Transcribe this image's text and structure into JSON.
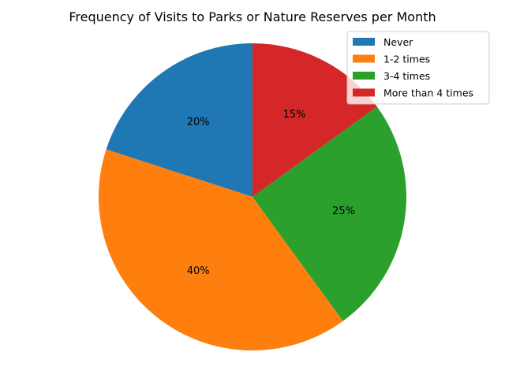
{
  "chart_data": {
    "type": "pie",
    "title": "Frequency of Visits to Parks or Nature Reserves per Month",
    "categories": [
      "Never",
      "1-2 times",
      "3-4 times",
      "More than 4 times"
    ],
    "values": [
      20,
      40,
      25,
      15
    ],
    "labels": [
      "20%",
      "40%",
      "25%",
      "15%"
    ],
    "colors": [
      "#1f77b4",
      "#ff7f0e",
      "#2ca02c",
      "#d62728"
    ],
    "start_angle_deg": 90,
    "direction": "counterclockwise",
    "legend_position": "top-right"
  }
}
